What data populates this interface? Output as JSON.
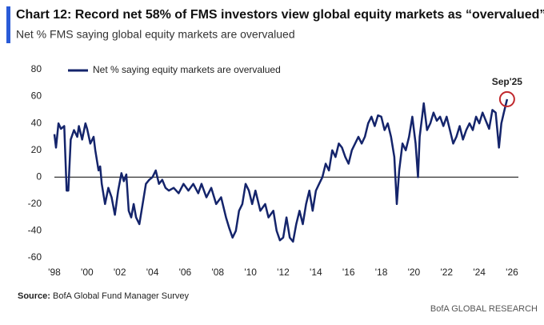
{
  "chart_data": {
    "type": "line",
    "title": "Chart 12: Record net 58% of FMS investors view global equity markets as “overvalued”",
    "subtitle": "Net % FMS saying global equity markets are overvalued",
    "annotation": "Sep'25",
    "annotation_color": "#c0282d",
    "source_label": "Source:",
    "source": "BofA Global Fund Manager Survey",
    "footer": "BofA GLOBAL RESEARCH",
    "x": [
      1998.0,
      1998.1,
      1998.25,
      1998.4,
      1998.6,
      1998.75,
      1998.85,
      1999.0,
      1999.2,
      1999.4,
      1999.5,
      1999.7,
      1999.9,
      2000.0,
      2000.2,
      2000.4,
      2000.5,
      2000.7,
      2000.8,
      2000.9,
      2001.1,
      2001.3,
      2001.5,
      2001.7,
      2001.9,
      2002.1,
      2002.25,
      2002.4,
      2002.55,
      2002.7,
      2002.85,
      2003.0,
      2003.2,
      2003.4,
      2003.6,
      2003.8,
      2004.0,
      2004.2,
      2004.4,
      2004.6,
      2004.8,
      2005.0,
      2005.3,
      2005.6,
      2005.9,
      2006.2,
      2006.5,
      2006.8,
      2007.0,
      2007.3,
      2007.6,
      2007.9,
      2008.2,
      2008.5,
      2008.7,
      2008.9,
      2009.1,
      2009.3,
      2009.5,
      2009.7,
      2009.9,
      2010.1,
      2010.3,
      2010.6,
      2010.9,
      2011.1,
      2011.4,
      2011.6,
      2011.8,
      2012.0,
      2012.2,
      2012.4,
      2012.6,
      2012.8,
      2013.0,
      2013.2,
      2013.4,
      2013.6,
      2013.8,
      2014.0,
      2014.2,
      2014.4,
      2014.6,
      2014.8,
      2015.0,
      2015.2,
      2015.4,
      2015.6,
      2015.8,
      2016.0,
      2016.2,
      2016.4,
      2016.6,
      2016.8,
      2017.0,
      2017.2,
      2017.4,
      2017.6,
      2017.8,
      2018.0,
      2018.2,
      2018.4,
      2018.6,
      2018.8,
      2018.95,
      2019.1,
      2019.3,
      2019.5,
      2019.7,
      2019.9,
      2020.1,
      2020.25,
      2020.35,
      2020.6,
      2020.8,
      2021.0,
      2021.2,
      2021.4,
      2021.6,
      2021.8,
      2022.0,
      2022.2,
      2022.4,
      2022.6,
      2022.8,
      2023.0,
      2023.2,
      2023.4,
      2023.6,
      2023.8,
      2024.0,
      2024.2,
      2024.4,
      2024.6,
      2024.8,
      2025.0,
      2025.2,
      2025.35,
      2025.5,
      2025.7
    ],
    "series": [
      {
        "name": "Net % saying equity markets are overvalued",
        "color": "#14246b",
        "values": [
          32,
          22,
          40,
          36,
          38,
          -10,
          -10,
          28,
          35,
          30,
          38,
          28,
          40,
          36,
          25,
          30,
          20,
          5,
          8,
          -5,
          -20,
          -8,
          -15,
          -28,
          -10,
          3,
          -3,
          2,
          -25,
          -30,
          -20,
          -30,
          -35,
          -20,
          -5,
          -2,
          0,
          5,
          -5,
          -2,
          -8,
          -10,
          -8,
          -12,
          -5,
          -10,
          -5,
          -12,
          -5,
          -15,
          -8,
          -20,
          -15,
          -30,
          -38,
          -45,
          -40,
          -25,
          -20,
          -5,
          -10,
          -20,
          -10,
          -25,
          -20,
          -30,
          -25,
          -40,
          -47,
          -45,
          -30,
          -45,
          -48,
          -35,
          -25,
          -35,
          -20,
          -10,
          -25,
          -10,
          -5,
          0,
          10,
          5,
          20,
          15,
          25,
          22,
          15,
          10,
          20,
          25,
          30,
          25,
          30,
          40,
          45,
          38,
          46,
          45,
          35,
          40,
          30,
          15,
          -20,
          5,
          25,
          20,
          30,
          45,
          25,
          0,
          30,
          55,
          35,
          40,
          48,
          42,
          45,
          38,
          45,
          35,
          25,
          30,
          38,
          28,
          35,
          40,
          35,
          45,
          40,
          48,
          42,
          36,
          50,
          48,
          22,
          40,
          48,
          58
        ]
      }
    ],
    "xlim": [
      1998,
      2026
    ],
    "xticks": [
      {
        "value": 1998,
        "label": "'98"
      },
      {
        "value": 2000,
        "label": "'00"
      },
      {
        "value": 2002,
        "label": "'02"
      },
      {
        "value": 2004,
        "label": "'04"
      },
      {
        "value": 2006,
        "label": "'06"
      },
      {
        "value": 2008,
        "label": "'08"
      },
      {
        "value": 2010,
        "label": "'10"
      },
      {
        "value": 2012,
        "label": "'12"
      },
      {
        "value": 2014,
        "label": "'14"
      },
      {
        "value": 2016,
        "label": "'16"
      },
      {
        "value": 2018,
        "label": "'18"
      },
      {
        "value": 2020,
        "label": "'20"
      },
      {
        "value": 2022,
        "label": "'22"
      },
      {
        "value": 2024,
        "label": "'24"
      },
      {
        "value": 2026,
        "label": "'26"
      }
    ],
    "ylim": [
      -60,
      80
    ],
    "yticks": [
      -60,
      -40,
      -20,
      0,
      20,
      40,
      60,
      80
    ],
    "zero_line": true
  }
}
